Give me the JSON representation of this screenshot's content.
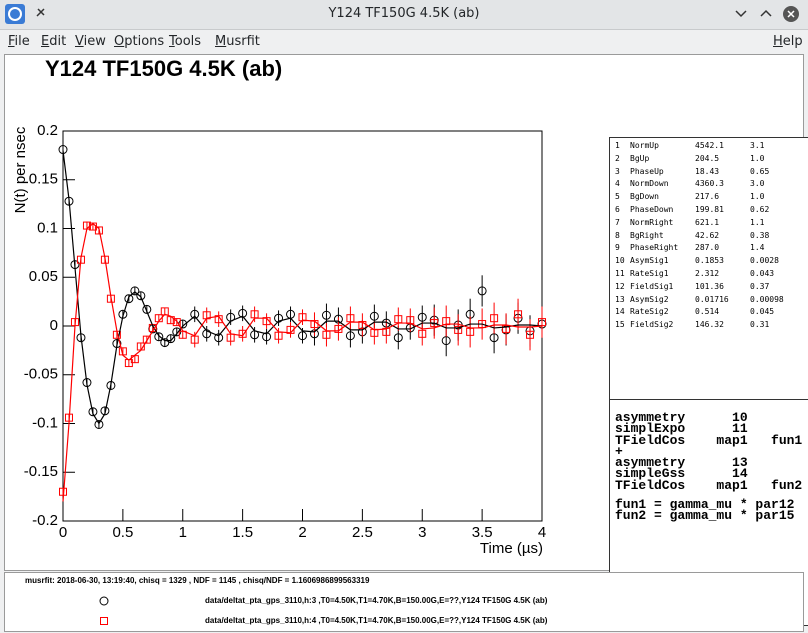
{
  "window": {
    "title": "Y124 TF150G 4.5K (ab)"
  },
  "menu": {
    "left": [
      "File",
      "Edit",
      "View",
      "Options",
      "Tools",
      "Musrfit"
    ],
    "right": "Help"
  },
  "chart_data": {
    "type": "scatter",
    "title": "Y124 TF150G 4.5K (ab)",
    "x_label": "Time (µs)",
    "y_label": "N(t) per nsec",
    "xlim": [
      0,
      4
    ],
    "ylim": [
      -0.2,
      0.2
    ],
    "xticks": [
      0,
      0.5,
      1,
      1.5,
      2,
      2.5,
      3,
      3.5,
      4
    ],
    "yticks": [
      -0.2,
      -0.15,
      -0.1,
      -0.05,
      0,
      0.05,
      0.1,
      0.15,
      0.2
    ],
    "x": [
      0,
      0.05,
      0.1,
      0.15,
      0.2,
      0.25,
      0.3,
      0.35,
      0.4,
      0.45,
      0.5,
      0.55,
      0.6,
      0.65,
      0.7,
      0.75,
      0.8,
      0.85,
      0.9,
      0.95,
      1.0,
      1.1,
      1.2,
      1.3,
      1.4,
      1.5,
      1.6,
      1.7,
      1.8,
      1.9,
      2.0,
      2.1,
      2.2,
      2.3,
      2.4,
      2.5,
      2.6,
      2.7,
      2.8,
      2.9,
      3.0,
      3.1,
      3.2,
      3.3,
      3.4,
      3.5,
      3.6,
      3.7,
      3.8,
      3.9,
      4.0
    ],
    "series": [
      {
        "name": "data/deltat_pta_gps_3110,h:3 ,T0=4.50K,T1=4.70K,B=150.00G,E=??,Y124 TF150G 4.5K (ab)",
        "color": "#000000",
        "marker": "circle",
        "values": [
          0.181,
          0.128,
          0.063,
          -0.012,
          -0.058,
          -0.088,
          -0.101,
          -0.087,
          -0.061,
          -0.018,
          0.012,
          0.028,
          0.036,
          0.031,
          0.017,
          -0.003,
          -0.011,
          -0.017,
          -0.013,
          -0.006,
          0.002,
          0.012,
          -0.008,
          -0.012,
          0.009,
          0.013,
          -0.009,
          -0.011,
          0.008,
          0.012,
          -0.01,
          -0.008,
          0.011,
          0.007,
          -0.01,
          -0.006,
          0.01,
          0.003,
          -0.012,
          -0.002,
          0.009,
          0.006,
          -0.015,
          0.001,
          0.012,
          0.036,
          -0.012,
          -0.004,
          0.008,
          -0.005,
          0.002
        ],
        "errors": [
          0.004,
          0.004,
          0.004,
          0.004,
          0.004,
          0.004,
          0.004,
          0.004,
          0.004,
          0.004,
          0.004,
          0.004,
          0.004,
          0.004,
          0.004,
          0.004,
          0.004,
          0.004,
          0.004,
          0.004,
          0.004,
          0.008,
          0.008,
          0.008,
          0.008,
          0.008,
          0.008,
          0.008,
          0.008,
          0.008,
          0.008,
          0.012,
          0.012,
          0.012,
          0.012,
          0.012,
          0.012,
          0.012,
          0.012,
          0.012,
          0.012,
          0.016,
          0.016,
          0.016,
          0.016,
          0.016,
          0.016,
          0.016,
          0.016,
          0.016,
          0.016
        ]
      },
      {
        "name": "data/deltat_pta_gps_3110,h:4 ,T0=4.50K,T1=4.70K,B=150.00G,E=??,Y124 TF150G 4.5K (ab)",
        "color": "#ff0000",
        "marker": "square",
        "values": [
          -0.17,
          -0.094,
          0.004,
          0.068,
          0.103,
          0.102,
          0.098,
          0.068,
          0.028,
          -0.009,
          -0.026,
          -0.038,
          -0.034,
          -0.021,
          -0.014,
          -0.002,
          0.008,
          0.015,
          0.006,
          0.004,
          -0.009,
          -0.014,
          0.011,
          0.007,
          -0.012,
          -0.008,
          0.012,
          0.005,
          -0.01,
          -0.004,
          0.009,
          0.002,
          -0.009,
          -0.003,
          0.008,
          0.001,
          -0.007,
          -0.006,
          0.007,
          0.006,
          -0.008,
          0.003,
          0.005,
          -0.004,
          -0.006,
          0.002,
          0.008,
          -0.003,
          0.012,
          -0.009,
          0.004
        ],
        "errors": [
          0.004,
          0.004,
          0.004,
          0.004,
          0.004,
          0.004,
          0.004,
          0.004,
          0.004,
          0.004,
          0.004,
          0.004,
          0.004,
          0.004,
          0.004,
          0.004,
          0.004,
          0.004,
          0.004,
          0.004,
          0.004,
          0.008,
          0.008,
          0.008,
          0.008,
          0.008,
          0.008,
          0.008,
          0.008,
          0.008,
          0.008,
          0.012,
          0.012,
          0.012,
          0.012,
          0.012,
          0.012,
          0.012,
          0.012,
          0.012,
          0.012,
          0.016,
          0.016,
          0.016,
          0.016,
          0.016,
          0.016,
          0.016,
          0.016,
          0.016,
          0.016
        ]
      },
      {
        "color": "#000000",
        "marker": "line",
        "values": [
          0.18,
          0.13,
          0.06,
          -0.01,
          -0.06,
          -0.09,
          -0.1,
          -0.09,
          -0.06,
          -0.02,
          0.01,
          0.03,
          0.035,
          0.03,
          0.015,
          0,
          -0.01,
          -0.015,
          -0.015,
          -0.008,
          0,
          0.01,
          -0.005,
          -0.01,
          0.005,
          0.01,
          -0.005,
          -0.008,
          0.005,
          0.008,
          -0.005,
          -0.006,
          0.005,
          0.005,
          -0.004,
          -0.004,
          0.004,
          0.004,
          -0.003,
          -0.003,
          0.003,
          0.003,
          -0.002,
          -0.002,
          0.002,
          0.002,
          -0.002,
          -0.001,
          0.001,
          0.001,
          0
        ]
      },
      {
        "color": "#ff0000",
        "marker": "line",
        "values": [
          -0.18,
          -0.1,
          0,
          0.07,
          0.1,
          0.105,
          0.1,
          0.07,
          0.03,
          -0.005,
          -0.03,
          -0.035,
          -0.03,
          -0.025,
          -0.015,
          -0.005,
          0.005,
          0.012,
          0.01,
          0.005,
          -0.005,
          -0.01,
          0.008,
          0.01,
          -0.008,
          -0.01,
          0.008,
          0.008,
          -0.006,
          -0.007,
          0.006,
          0.005,
          -0.005,
          -0.005,
          0.004,
          0.004,
          -0.004,
          -0.003,
          0.003,
          0.003,
          -0.003,
          -0.002,
          0.002,
          0.002,
          -0.002,
          -0.002,
          0.001,
          0.001,
          -0.001,
          -0.001,
          0
        ]
      }
    ]
  },
  "parameters": {
    "rows": [
      [
        "1",
        "NormUp",
        "4542.1",
        "3.1"
      ],
      [
        "2",
        "BgUp",
        "204.5",
        "1.0"
      ],
      [
        "3",
        "PhaseUp",
        "18.43",
        "0.65"
      ],
      [
        "4",
        "NormDown",
        "4360.3",
        "3.0"
      ],
      [
        "5",
        "BgDown",
        "217.6",
        "1.0"
      ],
      [
        "6",
        "PhaseDown",
        "199.81",
        "0.62"
      ],
      [
        "7",
        "NormRight",
        "621.1",
        "1.1"
      ],
      [
        "8",
        "BgRight",
        "42.62",
        "0.38"
      ],
      [
        "9",
        "PhaseRight",
        "287.0",
        "1.4"
      ],
      [
        "10",
        "AsymSig1",
        "0.1853",
        "0.0028"
      ],
      [
        "11",
        "RateSig1",
        "2.312",
        "0.043"
      ],
      [
        "12",
        "FieldSig1",
        "101.36",
        "0.37"
      ],
      [
        "13",
        "AsymSig2",
        "0.01716",
        "0.00098"
      ],
      [
        "14",
        "RateSig2",
        "0.514",
        "0.045"
      ],
      [
        "15",
        "FieldSig2",
        "146.32",
        "0.31"
      ]
    ]
  },
  "theory": {
    "lines": [
      "asymmetry      10",
      "simplExpo      11",
      "TFieldCos    map1   fun1",
      "+",
      "asymmetry      13",
      "simpleGss      14",
      "TFieldCos    map1   fun2"
    ],
    "functions": [
      "fun1 = gamma_mu * par12",
      "fun2 = gamma_mu * par15"
    ]
  },
  "legend": {
    "header": "musrfit: 2018-06-30, 13:19:40, chisq = 1329 , NDF = 1145 , chisq/NDF = 1.1606986899563319"
  }
}
